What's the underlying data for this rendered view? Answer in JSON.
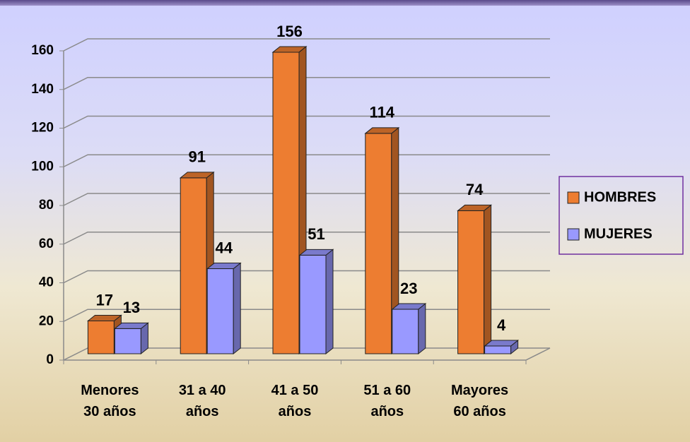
{
  "chart_data": {
    "type": "bar3d",
    "categories": [
      "Menores\n30 años",
      "31 a 40\naños",
      "41 a 50\naños",
      "51 a 60\naños",
      "Mayores\n60 años"
    ],
    "series": [
      {
        "name": "HOMBRES",
        "color": "#ed7d31",
        "values": [
          17,
          91,
          156,
          114,
          74
        ]
      },
      {
        "name": "MUJERES",
        "color": "#9999ff",
        "values": [
          13,
          44,
          51,
          23,
          4
        ]
      }
    ],
    "ylim": [
      0,
      160
    ],
    "yticks": [
      0,
      20,
      40,
      60,
      80,
      100,
      120,
      140,
      160
    ],
    "grid": true,
    "legend": "right"
  }
}
